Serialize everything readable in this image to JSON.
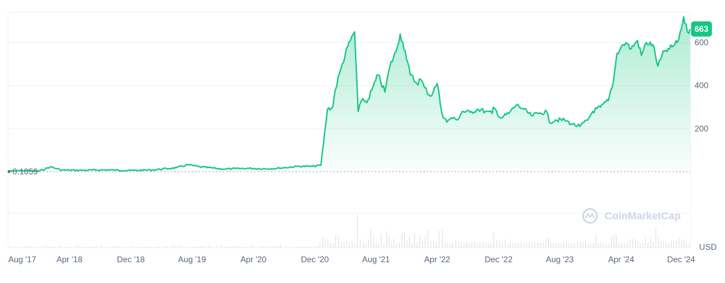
{
  "chart_data": {
    "type": "area",
    "currency_label": "USD",
    "watermark": "CoinMarketCap",
    "start_marker": "0.1059",
    "current_value": 663,
    "current_label": "663",
    "ylim": [
      0,
      740
    ],
    "yticks": [
      200,
      400,
      600
    ],
    "ytick_labels": [
      "200",
      "400",
      "600"
    ],
    "xlim": [
      "2017-08-01",
      "2025-01-01"
    ],
    "xticks": [
      {
        "date": "2017-08-01",
        "label": "Aug '17"
      },
      {
        "date": "2018-04-01",
        "label": "Apr '18"
      },
      {
        "date": "2018-12-01",
        "label": "Dec '18"
      },
      {
        "date": "2019-08-01",
        "label": "Aug '19"
      },
      {
        "date": "2020-04-01",
        "label": "Apr '20"
      },
      {
        "date": "2020-12-01",
        "label": "Dec '20"
      },
      {
        "date": "2021-08-01",
        "label": "Aug '21"
      },
      {
        "date": "2022-04-01",
        "label": "Apr '22"
      },
      {
        "date": "2022-12-01",
        "label": "Dec '22"
      },
      {
        "date": "2023-08-01",
        "label": "Aug '23"
      },
      {
        "date": "2024-04-01",
        "label": "Apr '24"
      },
      {
        "date": "2024-12-01",
        "label": "Dec '24"
      }
    ],
    "colors": {
      "line": "#16c784",
      "badge": "#16c784",
      "grid": "#eff2f5"
    },
    "series": [
      {
        "x": [
          "2017-08-01",
          "2017-10-01",
          "2017-12-01",
          "2018-01-15",
          "2018-03-01",
          "2018-06-01",
          "2018-09-01",
          "2018-12-01",
          "2019-03-01",
          "2019-06-01",
          "2019-07-15",
          "2019-09-01",
          "2019-12-01",
          "2020-03-15",
          "2020-06-01",
          "2020-08-01",
          "2020-10-01",
          "2020-11-20",
          "2020-12-25",
          "2021-01-20",
          "2021-02-10",
          "2021-02-20",
          "2021-03-15",
          "2021-04-10",
          "2021-05-08",
          "2021-05-22",
          "2021-06-10",
          "2021-06-25",
          "2021-07-15",
          "2021-08-10",
          "2021-09-05",
          "2021-09-25",
          "2021-10-20",
          "2021-11-05",
          "2021-11-25",
          "2021-12-15",
          "2022-01-10",
          "2022-01-25",
          "2022-02-10",
          "2022-03-05",
          "2022-04-01",
          "2022-04-20",
          "2022-05-10",
          "2022-05-25",
          "2022-06-18",
          "2022-07-10",
          "2022-08-10",
          "2022-09-10",
          "2022-10-10",
          "2022-11-05",
          "2022-11-10",
          "2022-12-10",
          "2023-01-10",
          "2023-02-10",
          "2023-03-10",
          "2023-04-10",
          "2023-05-10",
          "2023-06-10",
          "2023-06-20",
          "2023-07-15",
          "2023-08-20",
          "2023-09-20",
          "2023-10-20",
          "2023-11-20",
          "2023-12-10",
          "2024-01-10",
          "2024-02-10",
          "2024-03-01",
          "2024-03-15",
          "2024-04-01",
          "2024-04-20",
          "2024-05-10",
          "2024-06-05",
          "2024-06-20",
          "2024-07-10",
          "2024-08-05",
          "2024-08-25",
          "2024-09-20",
          "2024-10-10",
          "2024-11-10",
          "2024-12-01",
          "2024-12-05",
          "2024-12-20",
          "2024-12-31"
        ],
        "y": [
          0.1059,
          4,
          2,
          22,
          7,
          6,
          8,
          5,
          8,
          18,
          32,
          22,
          12,
          15,
          13,
          18,
          25,
          24,
          30,
          290,
          300,
          380,
          480,
          580,
          650,
          280,
          340,
          320,
          380,
          450,
          370,
          490,
          560,
          640,
          560,
          450,
          410,
          430,
          390,
          350,
          410,
          270,
          230,
          250,
          240,
          280,
          275,
          290,
          280,
          270,
          300,
          250,
          270,
          310,
          290,
          260,
          270,
          280,
          230,
          240,
          240,
          220,
          210,
          240,
          280,
          300,
          330,
          420,
          550,
          580,
          600,
          570,
          610,
          540,
          600,
          590,
          490,
          560,
          570,
          600,
          690,
          720,
          650,
          663
        ]
      }
    ]
  }
}
